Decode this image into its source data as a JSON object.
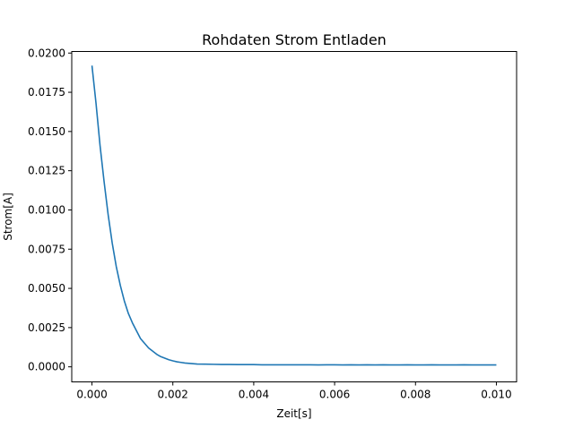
{
  "chart_data": {
    "type": "line",
    "title": "Rohdaten Strom Entladen",
    "xlabel": "Zeit[s]",
    "ylabel": "Strom[A]",
    "xlim": [
      -0.0005,
      0.0105
    ],
    "ylim": [
      -0.00096,
      0.0201
    ],
    "x_ticks": [
      0.0,
      0.002,
      0.004,
      0.006,
      0.008,
      0.01
    ],
    "x_tick_labels": [
      "0.000",
      "0.002",
      "0.004",
      "0.006",
      "0.008",
      "0.010"
    ],
    "y_ticks": [
      0.0,
      0.0025,
      0.005,
      0.0075,
      0.01,
      0.0125,
      0.015,
      0.0175,
      0.02
    ],
    "y_tick_labels": [
      "0.0000",
      "0.0025",
      "0.0050",
      "0.0075",
      "0.0100",
      "0.0125",
      "0.0150",
      "0.0175",
      "0.0200"
    ],
    "grid": false,
    "legend": "none",
    "series": [
      {
        "color": "#1f77b4",
        "x": [
          0.0,
          0.0001,
          0.0002,
          0.0003,
          0.0004,
          0.0005,
          0.0006,
          0.0007,
          0.0008,
          0.0009,
          0.001,
          0.0011,
          0.0012,
          0.0013,
          0.0014,
          0.0015,
          0.0016,
          0.0017,
          0.0018,
          0.0019,
          0.002,
          0.0021,
          0.0022,
          0.0023,
          0.0024,
          0.0025,
          0.0026,
          0.0028,
          0.003,
          0.0032,
          0.0034,
          0.0036,
          0.0038,
          0.004,
          0.0042,
          0.0044,
          0.0046,
          0.0048,
          0.005,
          0.0052,
          0.0054,
          0.0056,
          0.0058,
          0.006,
          0.0062,
          0.0064,
          0.0066,
          0.0068,
          0.007,
          0.0072,
          0.0074,
          0.0076,
          0.0078,
          0.008,
          0.0082,
          0.0084,
          0.0086,
          0.0088,
          0.009,
          0.0092,
          0.0094,
          0.0096,
          0.0098,
          0.01
        ],
        "y": [
          0.0192,
          0.0168,
          0.0141,
          0.0118,
          0.0097,
          0.0079,
          0.0064,
          0.0052,
          0.0042,
          0.0034,
          0.0028,
          0.0023,
          0.0018,
          0.0015,
          0.0012,
          0.001,
          0.0008,
          0.00065,
          0.00055,
          0.00045,
          0.00038,
          0.00032,
          0.00028,
          0.00024,
          0.00022,
          0.0002,
          0.00018,
          0.00017,
          0.00016,
          0.00015,
          0.00015,
          0.00014,
          0.00014,
          0.00014,
          0.00013,
          0.00013,
          0.00013,
          0.00013,
          0.00013,
          0.00013,
          0.00013,
          0.00012,
          0.00013,
          0.00013,
          0.00012,
          0.00013,
          0.00012,
          0.00013,
          0.00012,
          0.00013,
          0.00012,
          0.00012,
          0.00013,
          0.00012,
          0.00012,
          0.00013,
          0.00012,
          0.00012,
          0.00012,
          0.00013,
          0.00012,
          0.00012,
          0.00012,
          0.00012
        ]
      }
    ]
  }
}
